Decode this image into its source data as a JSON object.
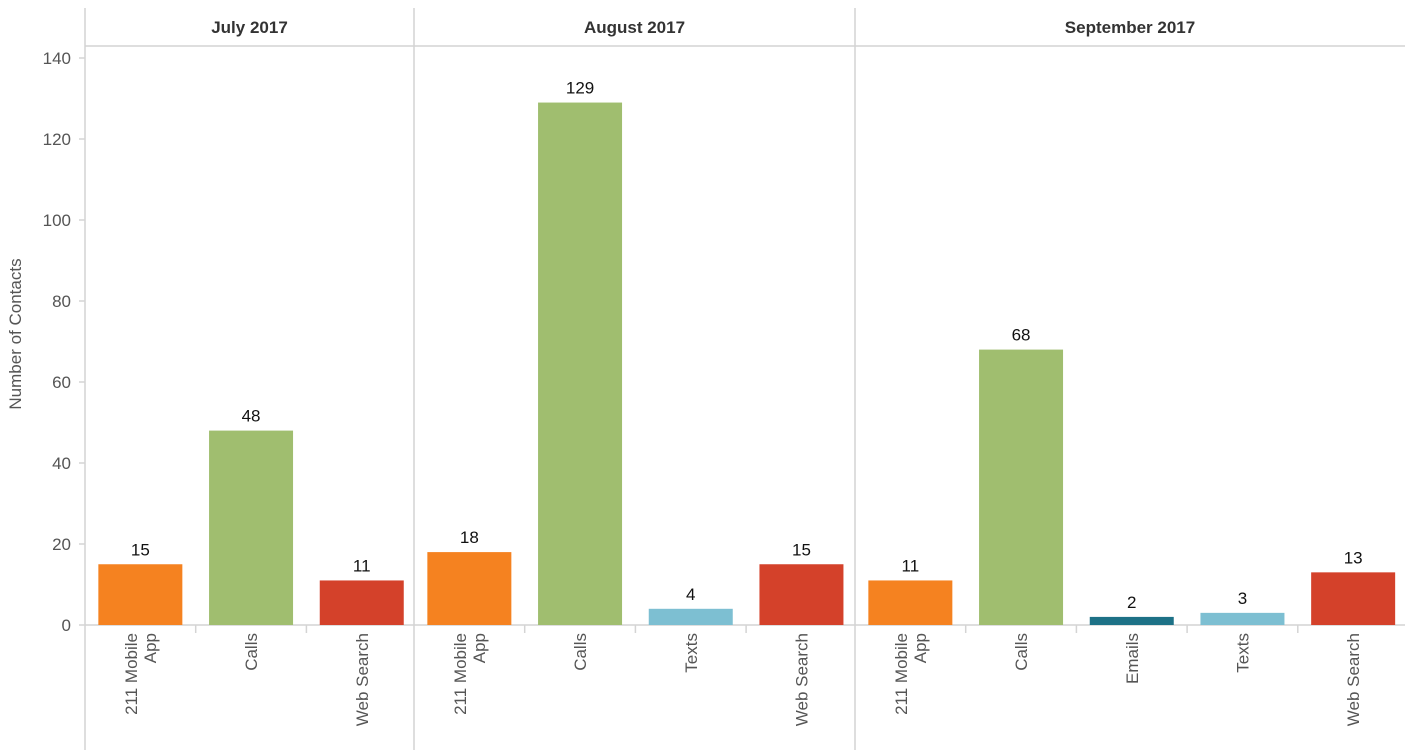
{
  "chart_data": {
    "type": "bar",
    "ylabel": "Number of Contacts",
    "ylim": [
      0,
      140
    ],
    "yticks": [
      0,
      20,
      40,
      60,
      80,
      100,
      120,
      140
    ],
    "grid": false,
    "panels": [
      {
        "title": "July 2017",
        "bars": [
          {
            "category": [
              "211 Mobile",
              "App"
            ],
            "value": 15
          },
          {
            "category": [
              "Calls"
            ],
            "value": 48
          },
          {
            "category": [
              "Web Search"
            ],
            "value": 11
          }
        ]
      },
      {
        "title": "August 2017",
        "bars": [
          {
            "category": [
              "211 Mobile",
              "App"
            ],
            "value": 18
          },
          {
            "category": [
              "Calls"
            ],
            "value": 129
          },
          {
            "category": [
              "Texts"
            ],
            "value": 4
          },
          {
            "category": [
              "Web Search"
            ],
            "value": 15
          }
        ]
      },
      {
        "title": "September 2017",
        "bars": [
          {
            "category": [
              "211 Mobile",
              "App"
            ],
            "value": 11
          },
          {
            "category": [
              "Calls"
            ],
            "value": 68
          },
          {
            "category": [
              "Emails"
            ],
            "value": 2
          },
          {
            "category": [
              "Texts"
            ],
            "value": 3
          },
          {
            "category": [
              "Web Search"
            ],
            "value": 13
          }
        ]
      }
    ],
    "colors": {
      "211 Mobile App": "#f58220",
      "Calls": "#a0be6f",
      "Web Search": "#d4412a",
      "Texts": "#7dbfd2",
      "Emails": "#1d7186"
    }
  }
}
